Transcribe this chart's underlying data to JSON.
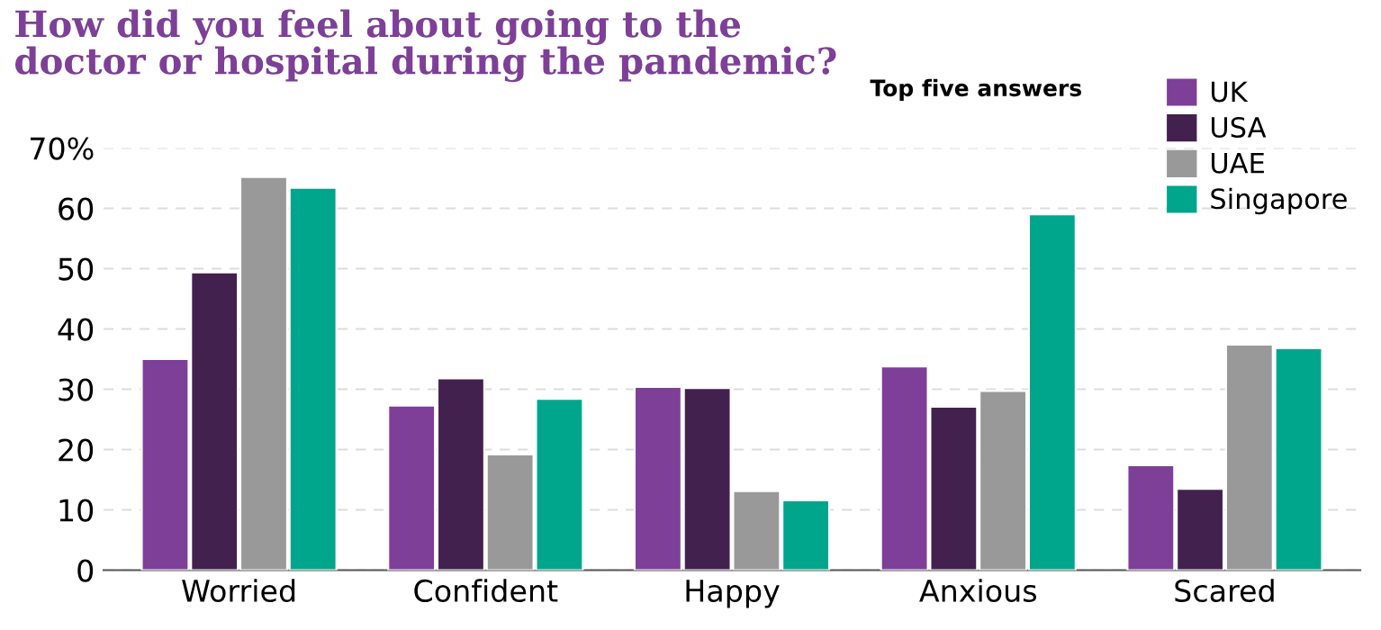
{
  "chart_data": {
    "type": "bar",
    "title": "How did you feel about going to the\ndoctor or hospital during the pandemic?",
    "subtitle": "Top five answers",
    "categories": [
      "Worried",
      "Confident",
      "Happy",
      "Anxious",
      "Scared"
    ],
    "series": [
      {
        "name": "UK",
        "color": "#7d3f98",
        "values": [
          35,
          27.3,
          30.4,
          33.8,
          17.4
        ]
      },
      {
        "name": "USA",
        "color": "#42214f",
        "values": [
          49.4,
          31.8,
          30.2,
          27.1,
          13.5
        ]
      },
      {
        "name": "UAE",
        "color": "#999999",
        "values": [
          65.2,
          19.2,
          13.1,
          29.7,
          37.4
        ]
      },
      {
        "name": "Singapore",
        "color": "#00a68b",
        "values": [
          63.4,
          28.4,
          11.6,
          59,
          36.8
        ]
      }
    ],
    "ylim": [
      0,
      70
    ],
    "yticks": [
      0,
      10,
      20,
      30,
      40,
      50,
      60,
      {
        "value": 70,
        "label": "70%"
      }
    ],
    "grid": "y",
    "legend": "top right"
  }
}
